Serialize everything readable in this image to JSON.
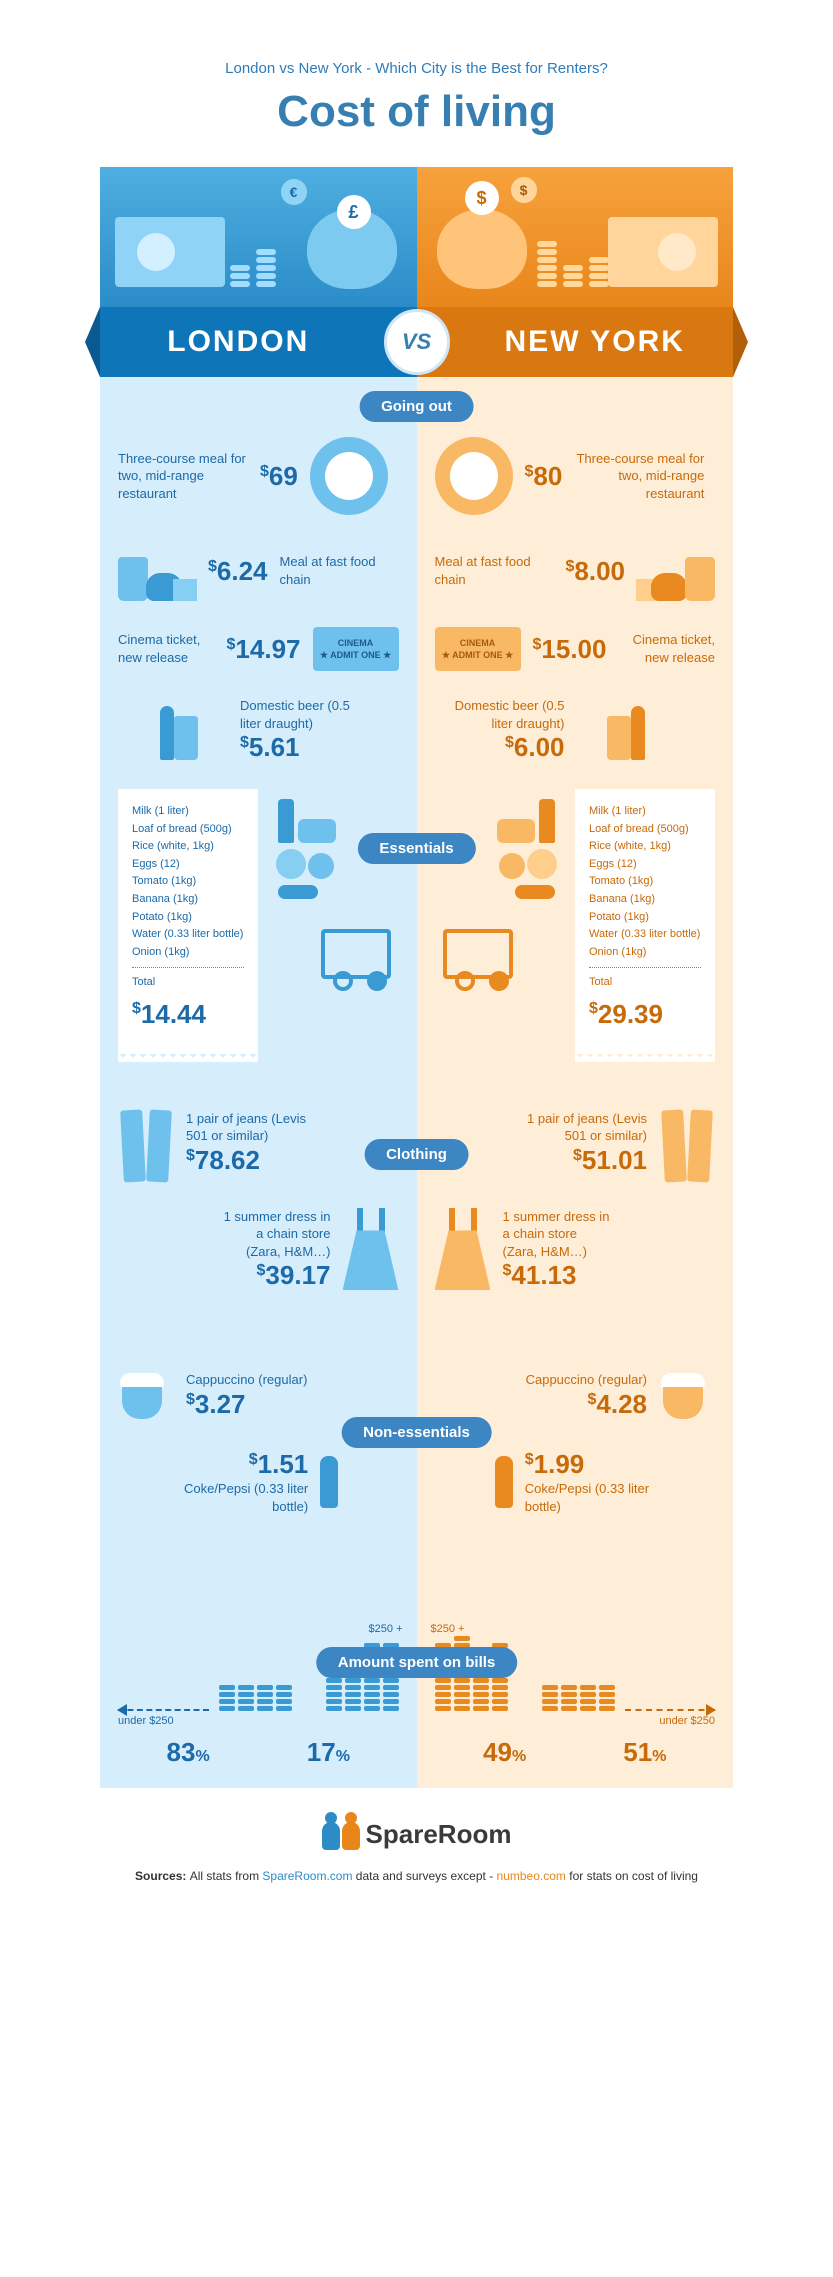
{
  "header": {
    "subtitle": "London vs New York - Which City is the Best for Renters?",
    "title": "Cost of living"
  },
  "colors": {
    "london_primary": "#2b8cc8",
    "london_light": "#6fc1ed",
    "london_bg": "#d6edfb",
    "london_text": "#1c6aa8",
    "newyork_primary": "#e8861a",
    "newyork_light": "#f9b864",
    "newyork_bg": "#ffeed7",
    "newyork_text": "#c76a0a",
    "pill_bg": "#3c86c3"
  },
  "cities": {
    "left": "LONDON",
    "right": "NEW YORK",
    "vs": "VS"
  },
  "sections": {
    "going_out": "Going out",
    "essentials": "Essentials",
    "clothing": "Clothing",
    "non_essentials": "Non-essentials",
    "bills": "Amount spent on bills"
  },
  "going_out": {
    "meal": {
      "label": "Three-course meal for two, mid-range restaurant",
      "london": "69",
      "newyork": "80"
    },
    "fastfood": {
      "label": "Meal at fast food chain",
      "london": "6.24",
      "newyork": "8.00"
    },
    "cinema": {
      "label": "Cinema ticket, new release",
      "london": "14.97",
      "newyork": "15.00",
      "ticket_line1": "CINEMA",
      "ticket_line2": "★ ADMIT ONE ★"
    },
    "beer": {
      "label": "Domestic beer (0.5 liter draught)",
      "london": "5.61",
      "newyork": "6.00"
    }
  },
  "essentials": {
    "items": [
      "Milk (1 liter)",
      "Loaf of bread (500g)",
      "Rice (white, 1kg)",
      "Eggs (12)",
      "Tomato (1kg)",
      "Banana (1kg)",
      "Potato (1kg)",
      "Water (0.33 liter bottle)",
      "Onion (1kg)"
    ],
    "total_label": "Total",
    "london_total": "14.44",
    "newyork_total": "29.39"
  },
  "clothing": {
    "jeans": {
      "label": "1 pair of jeans (Levis 501 or similar)",
      "london": "78.62",
      "newyork": "51.01"
    },
    "dress": {
      "label": "1 summer dress in a chain store (Zara, H&M…)",
      "london": "39.17",
      "newyork": "41.13"
    }
  },
  "non_essentials": {
    "cappuccino": {
      "label": "Cappuccino (regular)",
      "london": "3.27",
      "newyork": "4.28"
    },
    "coke": {
      "label": "Coke/Pepsi (0.33 liter bottle)",
      "london": "1.51",
      "newyork": "1.99"
    }
  },
  "bills": {
    "low_label": "under $250",
    "high_label": "$250 +",
    "london": {
      "under": "83",
      "over": "17",
      "under_stack": [
        4,
        4,
        4,
        4
      ],
      "over_stack": [
        8,
        9,
        10,
        10
      ]
    },
    "newyork": {
      "under": "51",
      "over": "49",
      "under_stack": [
        4,
        4,
        4,
        4
      ],
      "over_stack": [
        10,
        11,
        9,
        10
      ]
    }
  },
  "footer": {
    "brand": "SpareRoom",
    "sources_prefix": "Sources: ",
    "sources_mid": "All stats from ",
    "link1": "SpareRoom.com",
    "sources_mid2": " data and surveys except - ",
    "link2": "numbeo.com",
    "sources_suffix": " for stats on cost of living"
  }
}
